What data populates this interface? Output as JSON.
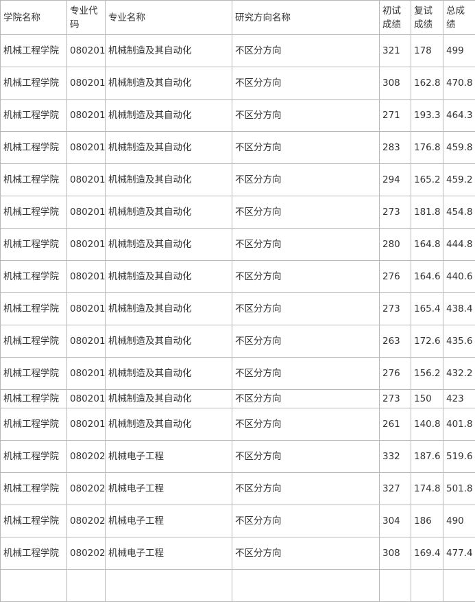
{
  "table": {
    "header": [
      "学院名称",
      "专业代码",
      "专业名称",
      "研究方向名称",
      "初试成绩",
      "复试成绩",
      "总成绩"
    ],
    "rows": [
      [
        "机械工程学院",
        "080201",
        "机械制造及其自动化",
        "不区分方向",
        321,
        178,
        499
      ],
      [
        "机械工程学院",
        "080201",
        "机械制造及其自动化",
        "不区分方向",
        308,
        162.8,
        470.8
      ],
      [
        "机械工程学院",
        "080201",
        "机械制造及其自动化",
        "不区分方向",
        271,
        193.3,
        464.3
      ],
      [
        "机械工程学院",
        "080201",
        "机械制造及其自动化",
        "不区分方向",
        283,
        176.8,
        459.8
      ],
      [
        "机械工程学院",
        "080201",
        "机械制造及其自动化",
        "不区分方向",
        294,
        165.2,
        459.2
      ],
      [
        "机械工程学院",
        "080201",
        "机械制造及其自动化",
        "不区分方向",
        273,
        181.8,
        454.8
      ],
      [
        "机械工程学院",
        "080201",
        "机械制造及其自动化",
        "不区分方向",
        280,
        164.8,
        444.8
      ],
      [
        "机械工程学院",
        "080201",
        "机械制造及其自动化",
        "不区分方向",
        276,
        164.6,
        440.6
      ],
      [
        "机械工程学院",
        "080201",
        "机械制造及其自动化",
        "不区分方向",
        273,
        165.4,
        438.4
      ],
      [
        "机械工程学院",
        "080201",
        "机械制造及其自动化",
        "不区分方向",
        263,
        172.6,
        435.6
      ],
      [
        "机械工程学院",
        "080201",
        "机械制造及其自动化",
        "不区分方向",
        276,
        156.2,
        432.2
      ],
      [
        "机械工程学院",
        "080201",
        "机械制造及其自动化",
        "不区分方向",
        273,
        150,
        423
      ],
      [
        "机械工程学院",
        "080201",
        "机械制造及其自动化",
        "不区分方向",
        261,
        140.8,
        401.8
      ],
      [
        "机械工程学院",
        "080202",
        "机械电子工程",
        "不区分方向",
        332,
        187.6,
        519.6
      ],
      [
        "机械工程学院",
        "080202",
        "机械电子工程",
        "不区分方向",
        327,
        174.8,
        501.8
      ],
      [
        "机械工程学院",
        "080202",
        "机械电子工程",
        "不区分方向",
        304,
        186,
        490
      ],
      [
        "机械工程学院",
        "080202",
        "机械电子工程",
        "不区分方向",
        308,
        169.4,
        477.4
      ]
    ]
  }
}
